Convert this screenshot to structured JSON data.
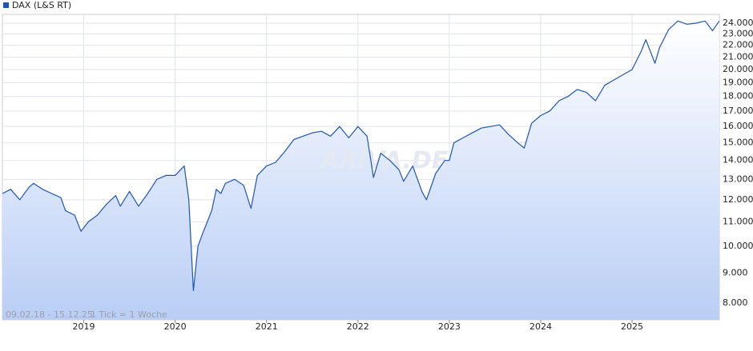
{
  "chart_data": {
    "type": "line",
    "legend": "DAX (L&S RT)",
    "color": "#1f55b5",
    "log_y": true,
    "grid": true,
    "date_range": "09.02.18 - 15.12.25",
    "interval_note": "1 Tick = 1 Woche",
    "watermark": "ARIVA.DE",
    "xlim": [
      2018.11,
      2025.955
    ],
    "xticks": [
      2019,
      2020,
      2021,
      2022,
      2023,
      2024,
      2025
    ],
    "ylim": [
      7490,
      24840
    ],
    "yticks": [
      {
        "value": 8000,
        "label": "8.000"
      },
      {
        "value": 9000,
        "label": "9.000"
      },
      {
        "value": 10000,
        "label": "10.000"
      },
      {
        "value": 11000,
        "label": "11.000"
      },
      {
        "value": 12000,
        "label": "12.000"
      },
      {
        "value": 13000,
        "label": "13.000"
      },
      {
        "value": 14000,
        "label": "14.000"
      },
      {
        "value": 15000,
        "label": "15.000"
      },
      {
        "value": 16000,
        "label": "16.000"
      },
      {
        "value": 17000,
        "label": "17.000"
      },
      {
        "value": 18000,
        "label": "18.000"
      },
      {
        "value": 19000,
        "label": "19.000"
      },
      {
        "value": 20000,
        "label": "20.000"
      },
      {
        "value": 21000,
        "label": "21.000"
      },
      {
        "value": 22000,
        "label": "22.000"
      },
      {
        "value": 23000,
        "label": "23.000"
      },
      {
        "value": 24000,
        "label": "24.000"
      }
    ],
    "x": [
      2018.11,
      2018.2,
      2018.3,
      2018.4,
      2018.45,
      2018.55,
      2018.65,
      2018.75,
      2018.8,
      2018.9,
      2018.97,
      2019.05,
      2019.15,
      2019.25,
      2019.35,
      2019.4,
      2019.5,
      2019.6,
      2019.7,
      2019.8,
      2019.9,
      2020.0,
      2020.1,
      2020.15,
      2020.2,
      2020.25,
      2020.3,
      2020.4,
      2020.45,
      2020.5,
      2020.55,
      2020.65,
      2020.75,
      2020.83,
      2020.9,
      2021.0,
      2021.1,
      2021.2,
      2021.3,
      2021.4,
      2021.5,
      2021.6,
      2021.7,
      2021.8,
      2021.9,
      2022.0,
      2022.1,
      2022.17,
      2022.25,
      2022.35,
      2022.45,
      2022.5,
      2022.6,
      2022.7,
      2022.75,
      2022.85,
      2022.95,
      2023.0,
      2023.05,
      2023.15,
      2023.25,
      2023.35,
      2023.45,
      2023.55,
      2023.65,
      2023.75,
      2023.82,
      2023.9,
      2024.0,
      2024.1,
      2024.2,
      2024.3,
      2024.4,
      2024.5,
      2024.6,
      2024.7,
      2024.8,
      2024.9,
      2025.0,
      2025.1,
      2025.15,
      2025.25,
      2025.3,
      2025.4,
      2025.5,
      2025.6,
      2025.7,
      2025.8,
      2025.88,
      2025.955
    ],
    "values": [
      12300,
      12500,
      12000,
      12600,
      12800,
      12500,
      12300,
      12100,
      11500,
      11300,
      10600,
      11000,
      11300,
      11800,
      12200,
      11700,
      12400,
      11700,
      12300,
      13000,
      13200,
      13200,
      13700,
      12000,
      8400,
      10000,
      10500,
      11500,
      12500,
      12300,
      12800,
      13000,
      12700,
      11600,
      13200,
      13700,
      13900,
      14500,
      15200,
      15400,
      15600,
      15700,
      15400,
      16000,
      15300,
      16000,
      15400,
      13100,
      14400,
      14000,
      13500,
      12900,
      13700,
      12400,
      12000,
      13300,
      14000,
      14000,
      15000,
      15300,
      15600,
      15900,
      16000,
      16100,
      15500,
      15000,
      14700,
      16200,
      16700,
      17000,
      17700,
      18000,
      18500,
      18300,
      17700,
      18800,
      19200,
      19600,
      20000,
      21500,
      22500,
      20500,
      21800,
      23400,
      24200,
      23900,
      24000,
      24200,
      23300,
      24200
    ]
  }
}
